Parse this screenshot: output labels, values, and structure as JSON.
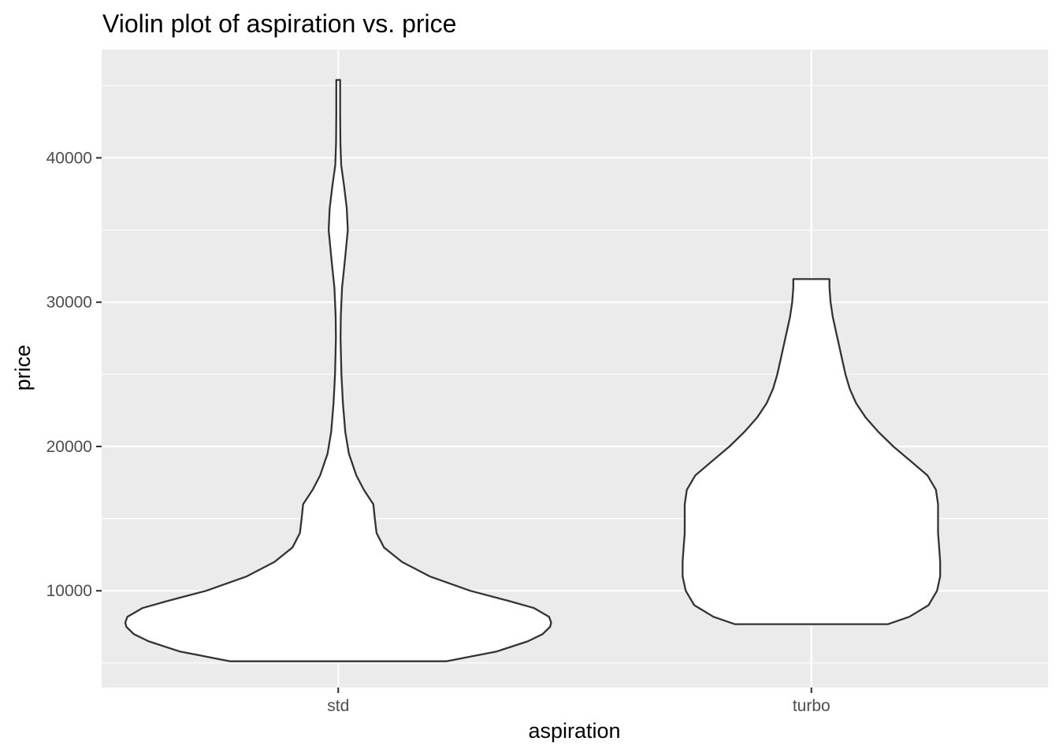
{
  "chart_data": {
    "type": "violin",
    "title": "Violin plot of aspiration vs. price",
    "xlabel": "aspiration",
    "ylabel": "price",
    "categories": [
      "std",
      "turbo"
    ],
    "ylim": [
      3300,
      47500
    ],
    "y_ticks": [
      10000,
      20000,
      30000,
      40000
    ],
    "y_tick_labels": [
      "10000",
      "20000",
      "30000",
      "40000"
    ],
    "y_minor_ticks": [
      5000,
      15000,
      25000,
      35000,
      45000
    ],
    "grid": true,
    "colors": {
      "panel_background": "#ebebeb",
      "grid": "#ffffff",
      "violin_fill": "#ffffff",
      "violin_outline": "#333333",
      "tick_label": "#4d4d4d"
    },
    "series": [
      {
        "category": "std",
        "min": 5118,
        "max": 45400,
        "density_profile": [
          [
            5118,
            0.507
          ],
          [
            5800,
            0.745
          ],
          [
            6500,
            0.89
          ],
          [
            7000,
            0.96
          ],
          [
            7500,
            0.995
          ],
          [
            7800,
            1.0
          ],
          [
            8200,
            0.99
          ],
          [
            8800,
            0.92
          ],
          [
            9300,
            0.8
          ],
          [
            10000,
            0.62
          ],
          [
            11000,
            0.43
          ],
          [
            12000,
            0.3
          ],
          [
            13000,
            0.215
          ],
          [
            14000,
            0.18
          ],
          [
            15000,
            0.172
          ],
          [
            16000,
            0.165
          ],
          [
            17000,
            0.12
          ],
          [
            18000,
            0.085
          ],
          [
            19500,
            0.05
          ],
          [
            21000,
            0.033
          ],
          [
            23000,
            0.022
          ],
          [
            25000,
            0.015
          ],
          [
            27500,
            0.011
          ],
          [
            29000,
            0.012
          ],
          [
            31000,
            0.018
          ],
          [
            33000,
            0.032
          ],
          [
            35000,
            0.045
          ],
          [
            36500,
            0.04
          ],
          [
            38000,
            0.028
          ],
          [
            39500,
            0.014
          ],
          [
            41000,
            0.01
          ],
          [
            43000,
            0.009
          ],
          [
            45000,
            0.009
          ],
          [
            45400,
            0.009
          ]
        ]
      },
      {
        "category": "turbo",
        "min": 7689,
        "max": 31600,
        "density_profile": [
          [
            7689,
            0.36
          ],
          [
            8200,
            0.46
          ],
          [
            9000,
            0.55
          ],
          [
            10000,
            0.59
          ],
          [
            11000,
            0.605
          ],
          [
            12000,
            0.605
          ],
          [
            13000,
            0.6
          ],
          [
            14000,
            0.595
          ],
          [
            15000,
            0.595
          ],
          [
            16000,
            0.595
          ],
          [
            17000,
            0.585
          ],
          [
            18000,
            0.545
          ],
          [
            19000,
            0.465
          ],
          [
            20000,
            0.385
          ],
          [
            21000,
            0.315
          ],
          [
            22000,
            0.255
          ],
          [
            23000,
            0.21
          ],
          [
            24000,
            0.18
          ],
          [
            25000,
            0.16
          ],
          [
            26000,
            0.145
          ],
          [
            27000,
            0.13
          ],
          [
            28000,
            0.115
          ],
          [
            29000,
            0.1
          ],
          [
            30000,
            0.09
          ],
          [
            31000,
            0.085
          ],
          [
            31600,
            0.085
          ]
        ]
      }
    ]
  }
}
